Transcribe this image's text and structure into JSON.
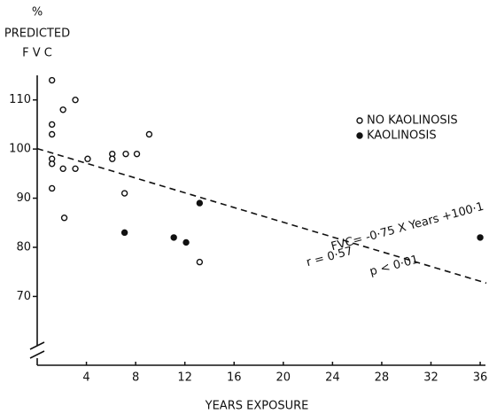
{
  "chart_data": {
    "type": "scatter",
    "ylabel_lines": [
      "%",
      "PREDICTED",
      "F V C"
    ],
    "xlabel": "YEARS EXPOSURE",
    "xlim": [
      0,
      36.5
    ],
    "ylim": [
      56,
      115
    ],
    "xticks": [
      4,
      8,
      12,
      16,
      20,
      24,
      28,
      32,
      36
    ],
    "yticks": [
      70,
      80,
      90,
      100,
      110
    ],
    "series": [
      {
        "name": "NO KAOLINOSIS",
        "color": "#111111",
        "marker": "open",
        "x": [
          1.2,
          1.2,
          1.2,
          1.2,
          1.2,
          1.2,
          2.1,
          2.1,
          2.2,
          3.1,
          3.1,
          4.1,
          6.1,
          6.1,
          7.2,
          8.1,
          9.1,
          7.1,
          13.2
        ],
        "values": [
          114,
          105,
          103,
          98,
          97,
          92,
          108,
          96,
          86,
          110,
          96,
          98,
          99,
          98,
          99,
          99,
          103,
          91,
          77
        ]
      },
      {
        "name": "KAOLINOSIS",
        "color": "#111111",
        "marker": "filled",
        "x": [
          7.1,
          11.1,
          12.1,
          13.2,
          36
        ],
        "values": [
          83,
          82,
          81,
          89,
          82
        ]
      }
    ],
    "fit": {
      "slope": -0.75,
      "intercept": 100.1
    },
    "annotations": [
      "FVC= -0·75 X Years +100·1",
      "r = 0·57",
      "p < 0·01"
    ],
    "legend": "upper-right"
  }
}
